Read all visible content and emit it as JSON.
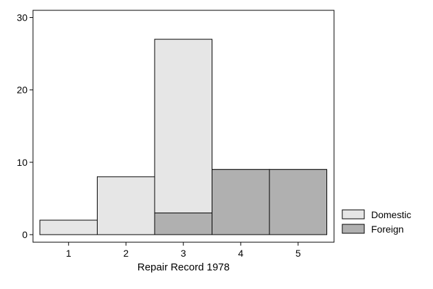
{
  "chart_data": {
    "type": "bar",
    "stacked": true,
    "categories": [
      "1",
      "2",
      "3",
      "4",
      "5"
    ],
    "series": [
      {
        "name": "Foreign",
        "values": [
          0,
          0,
          3,
          9,
          9
        ],
        "color": "#b0b0b0"
      },
      {
        "name": "Domestic",
        "values": [
          2,
          8,
          27,
          9,
          9
        ],
        "color": "#e6e6e6"
      }
    ],
    "overlap": true,
    "xlabel": "Repair Record 1978",
    "ylabel": "",
    "ylim": [
      0,
      31
    ],
    "yticks": [
      0,
      10,
      20,
      30
    ],
    "grid": false,
    "legend": {
      "position": "right-bottom",
      "entries": [
        {
          "name": "Domestic",
          "color": "#e6e6e6"
        },
        {
          "name": "Foreign",
          "color": "#b0b0b0"
        }
      ]
    }
  }
}
